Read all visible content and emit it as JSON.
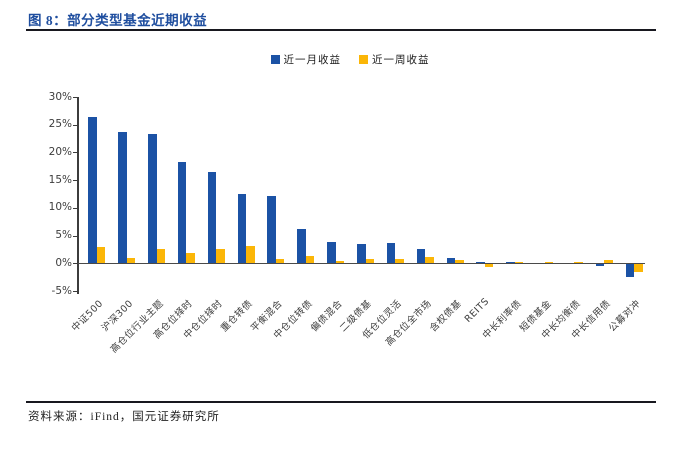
{
  "figure": {
    "title": "图 8：部分类型基金近期收益",
    "source": "资料来源：iFind，国元证券研究所"
  },
  "colors": {
    "bar_month_blue": "#1B52A5",
    "bar_week_yellow": "#FBB607",
    "title_blue": "#1F4E9F",
    "axis_line": "#3c3c3c",
    "rule_dark": "#18181f"
  },
  "chart_data": {
    "type": "bar",
    "title": "部分类型基金近期收益",
    "categories": [
      "中证500",
      "沪深300",
      "高仓位行业主题",
      "高仓位择时",
      "中仓位择时",
      "重仓转债",
      "平衡混合",
      "中仓位转债",
      "偏债混合",
      "二级债基",
      "低仓位灵活",
      "高仓位全市场",
      "含权债基",
      "REITS",
      "中长利率债",
      "短债基金",
      "中长均衡债",
      "中长信用债",
      "公募对冲"
    ],
    "series": [
      {
        "name": "近一月收益",
        "color": "#1B52A5",
        "values": [
          26.4,
          23.7,
          23.4,
          18.3,
          16.4,
          12.5,
          12.2,
          6.2,
          3.9,
          3.5,
          3.6,
          2.6,
          1.0,
          0.2,
          0.2,
          -0.2,
          -0.2,
          -0.5,
          -2.4
        ]
      },
      {
        "name": "近一周收益",
        "color": "#FBB607",
        "values": [
          3.0,
          1.0,
          2.6,
          1.8,
          2.6,
          3.1,
          0.8,
          1.4,
          0.5,
          0.7,
          0.7,
          1.2,
          0.6,
          -0.7,
          0.2,
          0.3,
          0.3,
          0.6,
          -1.5
        ]
      }
    ],
    "xlabel": "",
    "ylabel": "",
    "ylim": [
      -5,
      30
    ],
    "yticks": [
      {
        "value": 30,
        "label": "30%"
      },
      {
        "value": 25,
        "label": "25%"
      },
      {
        "value": 20,
        "label": "20%"
      },
      {
        "value": 15,
        "label": "15%"
      },
      {
        "value": 10,
        "label": "10%"
      },
      {
        "value": 5,
        "label": "5%"
      },
      {
        "value": 0,
        "label": "0%"
      },
      {
        "value": -5,
        "label": "-5%"
      }
    ],
    "grid": false,
    "legend_position": "top-center"
  }
}
